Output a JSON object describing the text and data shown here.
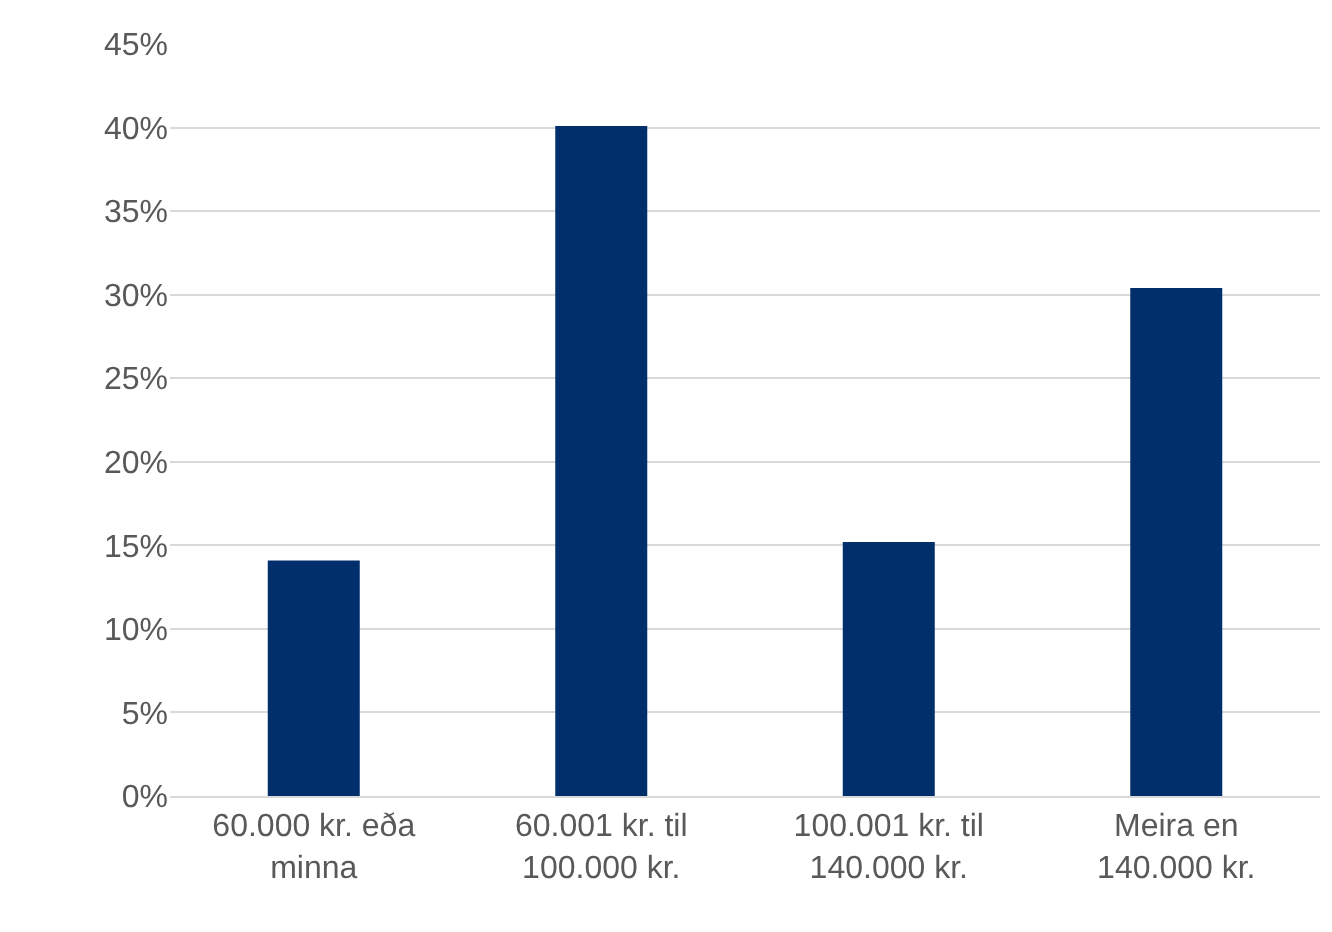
{
  "chart_data": {
    "type": "bar",
    "categories": [
      "60.000 kr. eða minna",
      "60.001 kr. til 100.000 kr.",
      "100.001 kr. til 140.000 kr.",
      "Meira en 140.000 kr."
    ],
    "values": [
      14.1,
      40.1,
      15.2,
      30.4
    ],
    "color": "#002f6c",
    "ylim": [
      0,
      45
    ],
    "yticks": [
      {
        "value": 0,
        "label": "0%"
      },
      {
        "value": 5,
        "label": "5%"
      },
      {
        "value": 10,
        "label": "10%"
      },
      {
        "value": 15,
        "label": "15%"
      },
      {
        "value": 20,
        "label": "20%"
      },
      {
        "value": 25,
        "label": "25%"
      },
      {
        "value": 30,
        "label": "30%"
      },
      {
        "value": 35,
        "label": "35%"
      },
      {
        "value": 40,
        "label": "40%"
      },
      {
        "value": 45,
        "label": "45%"
      }
    ],
    "grid": "y",
    "legend": false
  }
}
